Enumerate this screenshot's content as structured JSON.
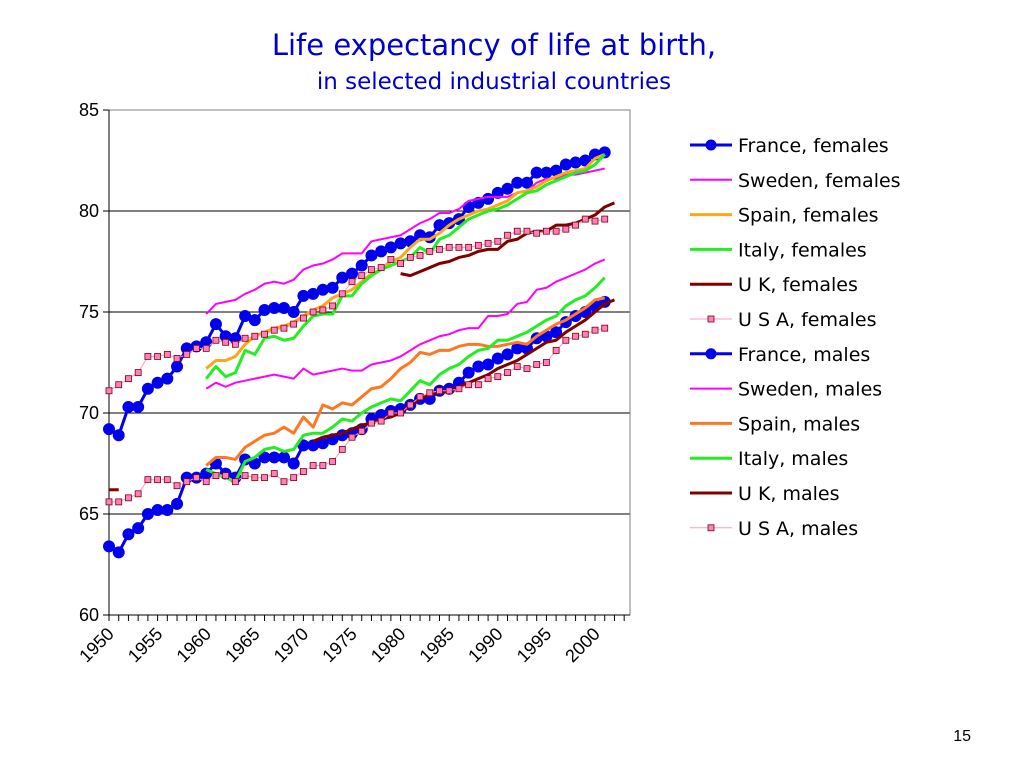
{
  "slide": {
    "page_number": "15"
  },
  "chart_data": {
    "type": "line",
    "title": "Life expectancy of life at birth,",
    "subtitle": "in selected industrial countries",
    "xlabel": "",
    "ylabel": "",
    "xlim": [
      1950,
      2003
    ],
    "ylim": [
      60,
      85
    ],
    "yticks": [
      60,
      65,
      70,
      75,
      80,
      85
    ],
    "xticks": [
      1950,
      1955,
      1960,
      1965,
      1970,
      1975,
      1980,
      1985,
      1990,
      1995,
      2000
    ],
    "grid": "horizontal",
    "legend_position": "right",
    "series": [
      {
        "name": "France, females",
        "color": "#0000ee",
        "marker": "circle",
        "width": 3,
        "start": 1950,
        "values": [
          69.2,
          68.9,
          70.3,
          70.3,
          71.2,
          71.5,
          71.7,
          72.3,
          73.2,
          73.3,
          73.5,
          74.4,
          73.8,
          73.7,
          74.8,
          74.6,
          75.1,
          75.2,
          75.2,
          75.0,
          75.8,
          75.9,
          76.1,
          76.2,
          76.7,
          76.9,
          77.3,
          77.8,
          78.0,
          78.2,
          78.4,
          78.5,
          78.8,
          78.7,
          79.3,
          79.4,
          79.6,
          80.2,
          80.4,
          80.6,
          80.9,
          81.1,
          81.4,
          81.4,
          81.9,
          81.9,
          82.0,
          82.3,
          82.4,
          82.5,
          82.8,
          82.9
        ]
      },
      {
        "name": "Sweden, females",
        "color": "#ff00ff",
        "marker": "none",
        "width": 2,
        "start": 1960,
        "values": [
          74.9,
          75.4,
          75.5,
          75.6,
          75.9,
          76.1,
          76.4,
          76.5,
          76.4,
          76.6,
          77.1,
          77.3,
          77.4,
          77.6,
          77.9,
          77.9,
          77.9,
          78.5,
          78.6,
          78.7,
          78.8,
          79.1,
          79.4,
          79.6,
          79.9,
          79.9,
          80.1,
          80.5,
          80.6,
          80.7,
          80.7,
          80.7,
          80.9,
          81.0,
          81.4,
          81.6,
          81.6,
          81.8,
          81.8,
          81.9,
          82.0,
          82.1
        ]
      },
      {
        "name": "Spain, females",
        "color": "#ffa51a",
        "marker": "none",
        "width": 3,
        "start": 1960,
        "values": [
          72.2,
          72.6,
          72.6,
          72.8,
          73.4,
          73.8,
          74.0,
          74.2,
          74.3,
          74.5,
          74.8,
          75.1,
          75.3,
          75.7,
          75.9,
          76.1,
          76.5,
          76.9,
          77.1,
          77.5,
          77.7,
          78.2,
          78.6,
          78.6,
          78.9,
          79.3,
          79.6,
          79.8,
          80.0,
          80.1,
          80.3,
          80.5,
          80.9,
          81.0,
          81.2,
          81.5,
          81.7,
          81.9,
          82.0,
          82.1,
          82.6,
          82.8
        ]
      },
      {
        "name": "Italy, females",
        "color": "#22ee22",
        "marker": "none",
        "width": 3,
        "start": 1960,
        "values": [
          71.7,
          72.3,
          71.8,
          72.0,
          73.1,
          72.9,
          73.7,
          73.8,
          73.6,
          73.7,
          74.3,
          74.8,
          74.9,
          74.9,
          75.8,
          75.8,
          76.4,
          76.8,
          77.1,
          77.3,
          77.5,
          77.7,
          78.2,
          77.9,
          78.6,
          78.8,
          79.2,
          79.6,
          79.8,
          80.0,
          80.1,
          80.3,
          80.6,
          80.9,
          81.0,
          81.3,
          81.5,
          81.7,
          81.9,
          82.0,
          82.3,
          82.8
        ]
      },
      {
        "name": "U K, females",
        "color": "#800000",
        "marker": "none",
        "width": 3,
        "segments": [
          {
            "start": 1950,
            "values": [
              66.2,
              66.2
            ]
          },
          {
            "start": 1980,
            "values": [
              76.9,
              76.8,
              77.0,
              77.2,
              77.4,
              77.5,
              77.7,
              77.8,
              78.0,
              78.1,
              78.1,
              78.5,
              78.6,
              78.9,
              79.0,
              79.0,
              79.3,
              79.3,
              79.4,
              79.6,
              79.8,
              80.2,
              80.4
            ]
          }
        ]
      },
      {
        "name": "U S A, females",
        "color": "#ff99cc",
        "marker": "square",
        "marker_fill": "#ff80c0",
        "marker_stroke": "#800000",
        "width": 1,
        "start": 1950,
        "values": [
          71.1,
          71.4,
          71.7,
          72.0,
          72.8,
          72.8,
          72.9,
          72.7,
          72.9,
          73.2,
          73.2,
          73.6,
          73.5,
          73.4,
          73.7,
          73.8,
          73.9,
          74.1,
          74.2,
          74.4,
          74.7,
          75.0,
          75.1,
          75.3,
          75.9,
          76.5,
          76.8,
          77.1,
          77.2,
          77.6,
          77.4,
          77.7,
          77.8,
          78.0,
          78.1,
          78.2,
          78.2,
          78.2,
          78.3,
          78.4,
          78.5,
          78.8,
          79.0,
          79.0,
          78.9,
          79.0,
          79.0,
          79.1,
          79.3,
          79.6,
          79.5,
          79.6
        ]
      },
      {
        "name": "France, males",
        "color": "#0000ee",
        "marker": "circle",
        "width": 3,
        "start": 1950,
        "values": [
          63.4,
          63.1,
          64.0,
          64.3,
          65.0,
          65.2,
          65.2,
          65.5,
          66.8,
          66.8,
          67.0,
          67.5,
          67.0,
          66.8,
          67.7,
          67.5,
          67.8,
          67.8,
          67.8,
          67.5,
          68.4,
          68.4,
          68.5,
          68.7,
          68.9,
          69.0,
          69.2,
          69.7,
          69.9,
          70.1,
          70.2,
          70.4,
          70.7,
          70.7,
          71.1,
          71.2,
          71.5,
          72.0,
          72.3,
          72.4,
          72.7,
          72.9,
          73.2,
          73.2,
          73.7,
          73.8,
          74.0,
          74.5,
          74.8,
          75.0,
          75.3,
          75.5
        ]
      },
      {
        "name": "Sweden, males",
        "color": "#ff00ff",
        "marker": "none",
        "width": 2,
        "start": 1960,
        "values": [
          71.2,
          71.5,
          71.3,
          71.5,
          71.6,
          71.7,
          71.8,
          71.9,
          71.8,
          71.7,
          72.2,
          71.9,
          72.0,
          72.1,
          72.2,
          72.1,
          72.1,
          72.4,
          72.5,
          72.6,
          72.8,
          73.1,
          73.4,
          73.6,
          73.8,
          73.9,
          74.1,
          74.2,
          74.2,
          74.8,
          74.8,
          74.9,
          75.4,
          75.5,
          76.1,
          76.2,
          76.5,
          76.7,
          76.9,
          77.1,
          77.4,
          77.6
        ]
      },
      {
        "name": "Spain, males",
        "color": "#ff7722",
        "marker": "none",
        "width": 3,
        "start": 1960,
        "values": [
          67.4,
          67.8,
          67.8,
          67.7,
          68.3,
          68.6,
          68.9,
          69.0,
          69.3,
          69.0,
          69.8,
          69.3,
          70.4,
          70.2,
          70.5,
          70.4,
          70.8,
          71.2,
          71.3,
          71.7,
          72.2,
          72.5,
          73.0,
          72.9,
          73.1,
          73.1,
          73.3,
          73.4,
          73.4,
          73.3,
          73.3,
          73.4,
          73.5,
          73.4,
          73.8,
          74.1,
          74.4,
          74.6,
          74.9,
          75.2,
          75.6,
          75.7
        ]
      },
      {
        "name": "Italy, males",
        "color": "#22ee22",
        "marker": "none",
        "width": 3,
        "start": 1960,
        "values": [
          67.2,
          67.0,
          66.8,
          66.6,
          67.6,
          67.8,
          68.2,
          68.3,
          68.1,
          68.2,
          68.9,
          69.0,
          69.0,
          69.3,
          69.7,
          69.6,
          70.0,
          70.3,
          70.5,
          70.7,
          70.6,
          71.1,
          71.6,
          71.4,
          71.9,
          72.2,
          72.4,
          72.8,
          73.1,
          73.2,
          73.6,
          73.6,
          73.8,
          74.0,
          74.3,
          74.6,
          74.8,
          75.3,
          75.6,
          75.8,
          76.2,
          76.7
        ]
      },
      {
        "name": "U K, males",
        "color": "#800000",
        "marker": "none",
        "width": 3,
        "segments": [
          {
            "start": 1971,
            "values": [
              68.6,
              68.8,
              68.9,
              69.0,
              69.2,
              69.4,
              69.5,
              69.7,
              69.8,
              70.0,
              70.4,
              70.7,
              70.9,
              71.0,
              71.1,
              71.3,
              71.5,
              71.7,
              71.9,
              72.2,
              72.4,
              72.6,
              72.9,
              73.2,
              73.5,
              73.6,
              74.0,
              74.3,
              74.6,
              75.0,
              75.4,
              75.6
            ]
          }
        ]
      },
      {
        "name": "U S A, males",
        "color": "#ff99cc",
        "marker": "square",
        "marker_fill": "#ff80c0",
        "marker_stroke": "#800000",
        "width": 1,
        "start": 1950,
        "values": [
          65.6,
          65.6,
          65.8,
          66.0,
          66.7,
          66.7,
          66.7,
          66.4,
          66.6,
          66.8,
          66.6,
          66.9,
          66.9,
          66.6,
          66.9,
          66.8,
          66.8,
          67.0,
          66.6,
          66.8,
          67.1,
          67.4,
          67.4,
          67.6,
          68.2,
          68.8,
          69.1,
          69.5,
          69.6,
          70.0,
          70.0,
          70.4,
          70.8,
          71.0,
          71.1,
          71.1,
          71.2,
          71.4,
          71.4,
          71.7,
          71.8,
          72.0,
          72.3,
          72.2,
          72.4,
          72.5,
          73.1,
          73.6,
          73.8,
          73.9,
          74.1,
          74.2
        ]
      }
    ]
  }
}
